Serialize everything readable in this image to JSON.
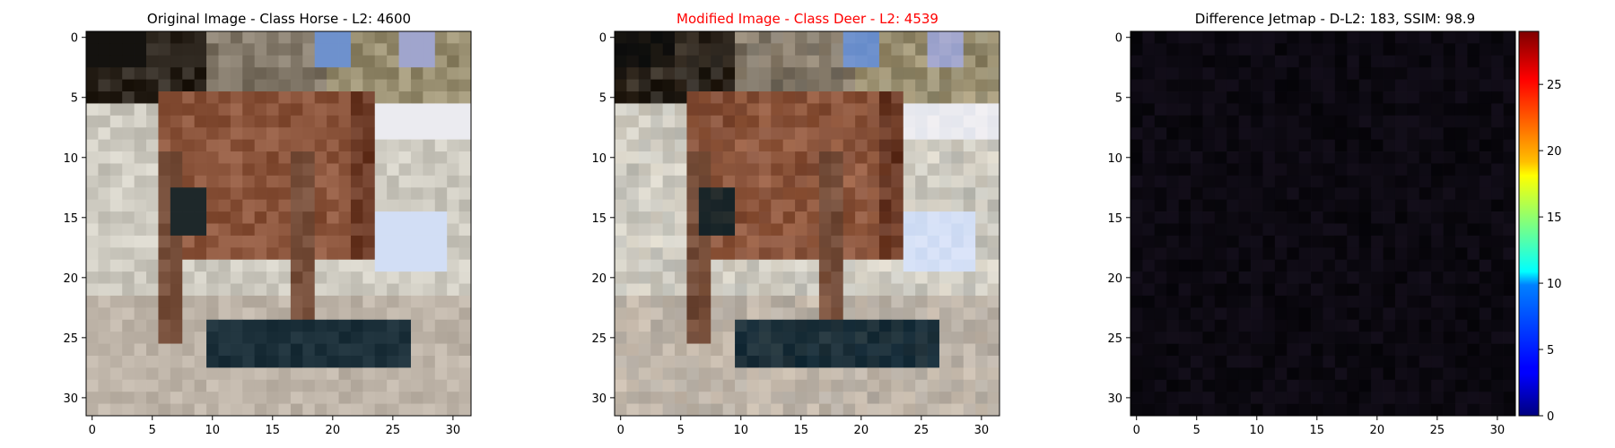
{
  "chart_data": [
    {
      "type": "heatmap",
      "title": "Original Image - Class Horse - L2: 4600",
      "title_color": "#000000",
      "xlabel": "",
      "ylabel": "",
      "xlim": [
        -0.5,
        31.5
      ],
      "ylim": [
        31.5,
        -0.5
      ],
      "xticks": [
        0,
        5,
        10,
        15,
        20,
        25,
        30
      ],
      "yticks": [
        0,
        5,
        10,
        15,
        20,
        25,
        30
      ],
      "grid": false
    },
    {
      "type": "heatmap",
      "title": "Modified Image - Class Deer - L2: 4539",
      "title_color": "#ff0000",
      "xlabel": "",
      "ylabel": "",
      "xlim": [
        -0.5,
        31.5
      ],
      "ylim": [
        31.5,
        -0.5
      ],
      "xticks": [
        0,
        5,
        10,
        15,
        20,
        25,
        30
      ],
      "yticks": [
        0,
        5,
        10,
        15,
        20,
        25,
        30
      ],
      "grid": false
    },
    {
      "type": "heatmap",
      "title": "Difference Jetmap - D-L2: 183, SSIM: 98.9",
      "title_color": "#000000",
      "xlabel": "",
      "ylabel": "",
      "xlim": [
        -0.5,
        31.5
      ],
      "ylim": [
        31.5,
        -0.5
      ],
      "xticks": [
        0,
        5,
        10,
        15,
        20,
        25,
        30
      ],
      "yticks": [
        0,
        5,
        10,
        15,
        20,
        25,
        30
      ],
      "grid": false,
      "colormap": "jet",
      "colorbar": {
        "min": 0,
        "max": 29,
        "ticks": [
          0,
          5,
          10,
          15,
          20,
          25
        ]
      }
    }
  ]
}
